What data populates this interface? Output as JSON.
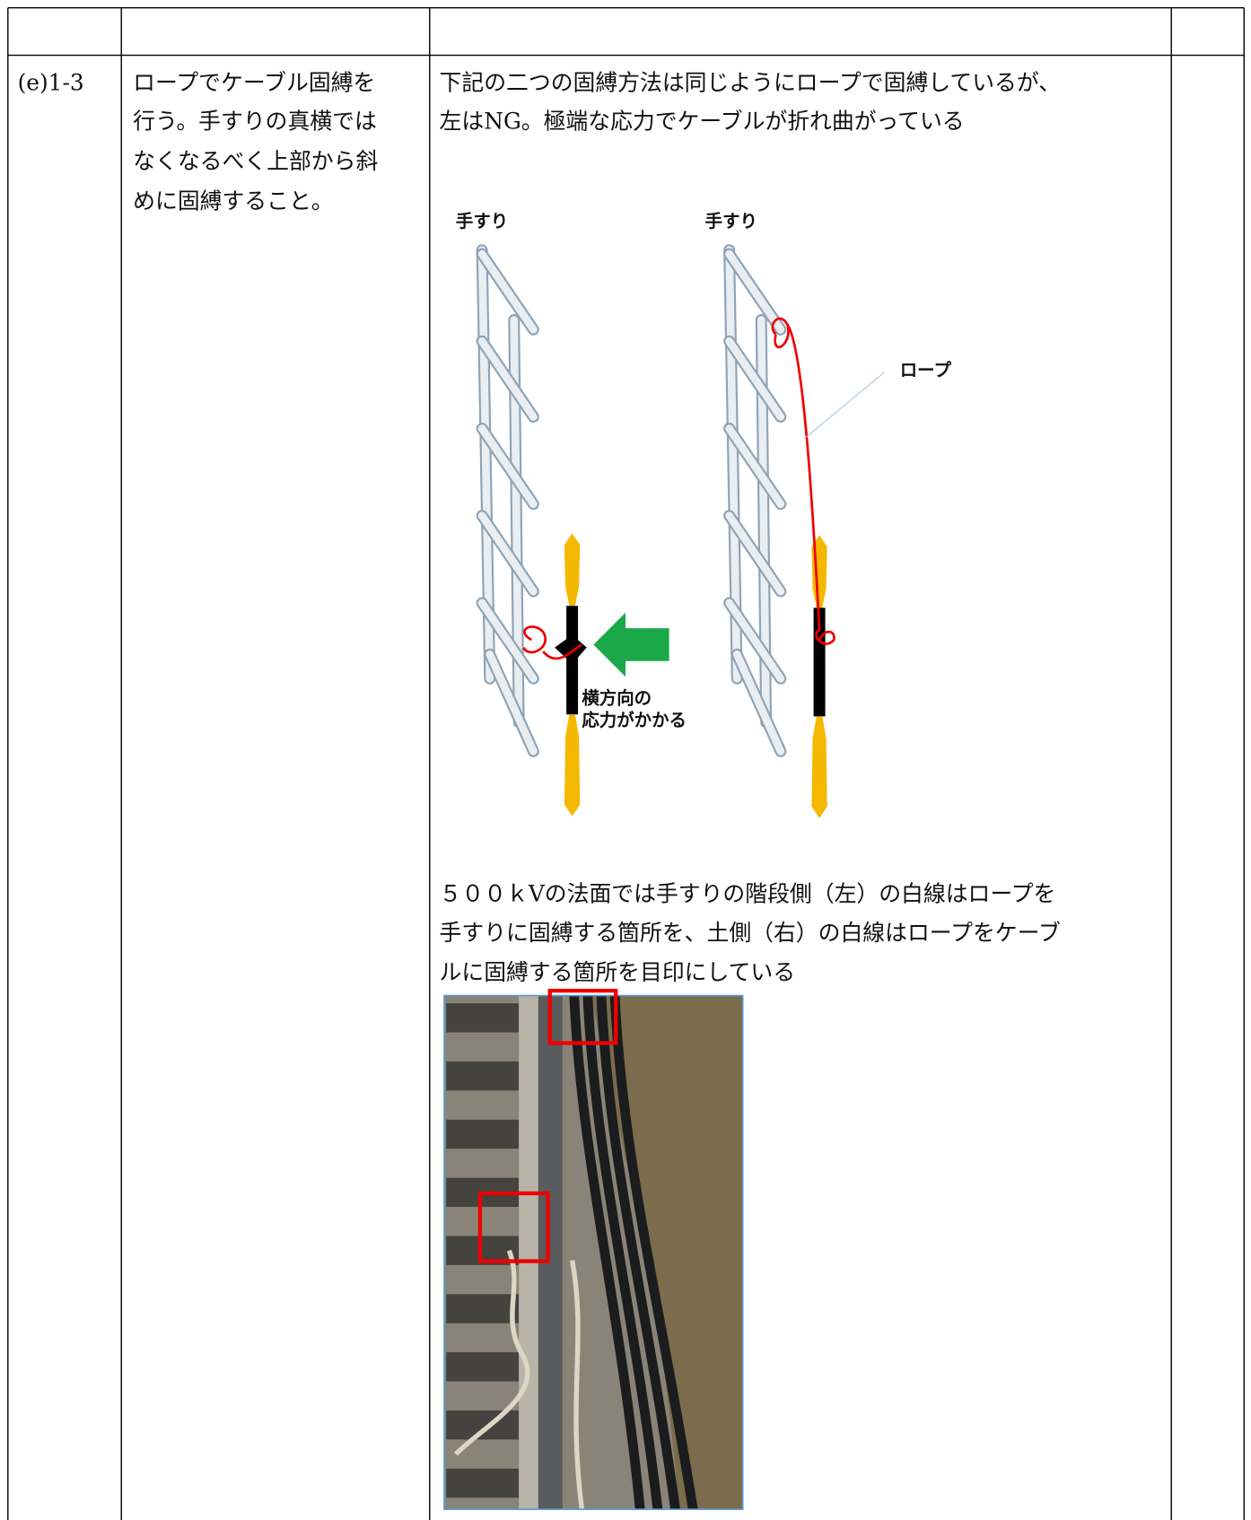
{
  "table": {
    "rows": [
      {
        "id": "(e)1-3",
        "action": [
          "ロープでケーブル固縛を",
          "行う。手すりの真横では",
          "なくなるべく上部から斜",
          "めに固縛すること。"
        ],
        "description": [
          "下記の二つの固縛方法は同じようにロープで固縛しているが、",
          "左はNG。極端な応力でケーブルが折れ曲がっている"
        ],
        "diagram": {
          "left_label": "手すり",
          "right_label": "手すり",
          "rope_label": "ロープ",
          "force_label": [
            "横方向の",
            "応力がかかる"
          ]
        },
        "note": [
          "５００ｋVの法面では手すりの階段側（左）の白線はロープを",
          "手すりに固縛する箇所を、土側（右）の白線はロープをケーブ",
          "ルに固縛する箇所を目印にしている"
        ]
      }
    ]
  }
}
